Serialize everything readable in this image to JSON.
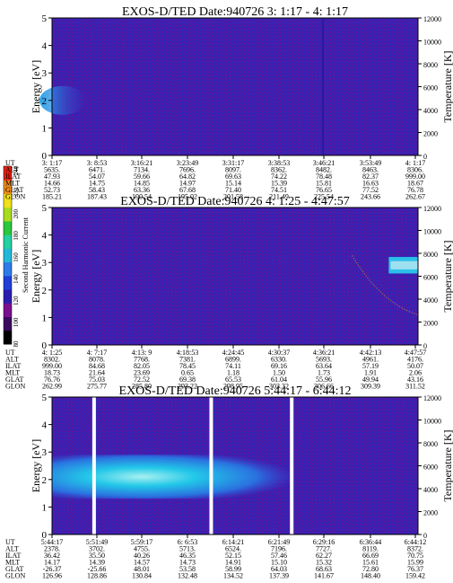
{
  "colorbar": {
    "label": "Second Harmonic Current",
    "ticks": [
      "80",
      "100",
      "120",
      "140",
      "160",
      "180",
      "200",
      "220",
      "240"
    ],
    "colors": [
      "#000000",
      "#3b0a5e",
      "#7a1090",
      "#2b1db0",
      "#1f3fd8",
      "#2d7be8",
      "#22b8d8",
      "#22d0a0",
      "#28c83c",
      "#a8dc20",
      "#f0e018",
      "#f08c18",
      "#e82010"
    ]
  },
  "row_labels": [
    "UT",
    "ALT",
    "ILAT",
    "MLT",
    "GLAT",
    "GLON"
  ],
  "chart_data": [
    {
      "type": "heatmap",
      "title": "EXOS-D/TED   Date:940726  3: 1:17 - 4: 1:17",
      "ylabel": "Energy [eV]",
      "ylabel_right": "Temperature [K]",
      "ylim": [
        0,
        5
      ],
      "ylim_right": [
        0,
        12000
      ],
      "yticks": [
        "0",
        "1",
        "2",
        "3",
        "4",
        "5"
      ],
      "yticks_right": [
        "0",
        "2000",
        "4000",
        "6000",
        "8000",
        "10000",
        "12000"
      ],
      "table": [
        [
          "3: 1:17",
          "3: 8:53",
          "3:16:21",
          "3:23:49",
          "3:31:17",
          "3:38:53",
          "3:46:21",
          "3:53:49",
          "4: 1:17"
        ],
        [
          "5635.",
          "6471.",
          "7134.",
          "7696.",
          "8097.",
          "8362.",
          "8482.",
          "8463.",
          "8306."
        ],
        [
          "47.93",
          "54.07",
          "59.66",
          "64.82",
          "69.63",
          "74.22",
          "78.48",
          "82.37",
          "999.00"
        ],
        [
          "14.66",
          "14.75",
          "14.85",
          "14.97",
          "15.14",
          "15.39",
          "15.81",
          "16.63",
          "18.67"
        ],
        [
          "52.73",
          "58.43",
          "63.36",
          "67.68",
          "71.40",
          "74.51",
          "76.65",
          "77.52",
          "76.78"
        ],
        [
          "185.21",
          "187.43",
          "190.54",
          "195.02",
          "201.58",
          "211.49",
          "225.54",
          "243.66",
          "262.67"
        ]
      ]
    },
    {
      "type": "heatmap",
      "title": "EXOS-D/TED   Date:940726  4: 1:25 - 4:47:57",
      "ylabel": "Energy [eV]",
      "ylabel_right": "Temperature [K]",
      "ylim": [
        0,
        5
      ],
      "ylim_right": [
        0,
        12000
      ],
      "yticks": [
        "0",
        "1",
        "2",
        "3",
        "4",
        "5"
      ],
      "yticks_right": [
        "0",
        "2000",
        "4000",
        "6000",
        "8000",
        "10000",
        "12000"
      ],
      "table": [
        [
          "4: 1:25",
          "4: 7:17",
          "4:13: 9",
          "4:18:53",
          "4:24:45",
          "4:30:37",
          "4:36:21",
          "4:42:13",
          "4:47:57"
        ],
        [
          "8302.",
          "8078.",
          "7768.",
          "7381.",
          "6899.",
          "6330.",
          "5693.",
          "4961.",
          "4176."
        ],
        [
          "999.00",
          "84.68",
          "82.05",
          "78.45",
          "74.11",
          "69.16",
          "63.64",
          "57.19",
          "50.07"
        ],
        [
          "18.73",
          "21.64",
          "23.69",
          "0.65",
          "1.18",
          "1.50",
          "1.73",
          "1.91",
          "2.06"
        ],
        [
          "76.76",
          "75.03",
          "72.52",
          "69.38",
          "65.53",
          "61.04",
          "55.96",
          "49.94",
          "43.16"
        ],
        [
          "262.99",
          "275.77",
          "285.80",
          "293.22",
          "298.95",
          "303.32",
          "306.66",
          "309.39",
          "311.52"
        ]
      ]
    },
    {
      "type": "heatmap",
      "title": "EXOS-D/TED   Date:940726  5:44:17 - 6:44:12",
      "ylabel": "Energy [eV]",
      "ylabel_right": "Temperature [K]",
      "ylim": [
        0,
        5
      ],
      "ylim_right": [
        0,
        12000
      ],
      "yticks": [
        "0",
        "1",
        "2",
        "3",
        "4",
        "5"
      ],
      "yticks_right": [
        "0",
        "2000",
        "4000",
        "6000",
        "8000",
        "10000",
        "12000"
      ],
      "table": [
        [
          "5:44:17",
          "5:51:49",
          "5:59:17",
          "6: 6:53",
          "6:14:21",
          "6:21:49",
          "6:29:16",
          "6:36:44",
          "6:44:12"
        ],
        [
          "2378.",
          "3702.",
          "4755.",
          "5713.",
          "6524.",
          "7196.",
          "7727.",
          "8119.",
          "8372."
        ],
        [
          "36.42",
          "35.50",
          "40.26",
          "46.35",
          "52.15",
          "57.46",
          "62.27",
          "66.69",
          "70.75"
        ],
        [
          "14.17",
          "14.39",
          "14.57",
          "14.73",
          "14.91",
          "15.10",
          "15.32",
          "15.61",
          "15.99"
        ],
        [
          "-26.37",
          "-25.66",
          "48.01",
          "53.58",
          "58.99",
          "64.03",
          "68.63",
          "72.80",
          "76.37"
        ],
        [
          "126.96",
          "128.86",
          "130.84",
          "132.48",
          "134.52",
          "137.39",
          "141.67",
          "148.40",
          "159.42"
        ]
      ]
    }
  ]
}
